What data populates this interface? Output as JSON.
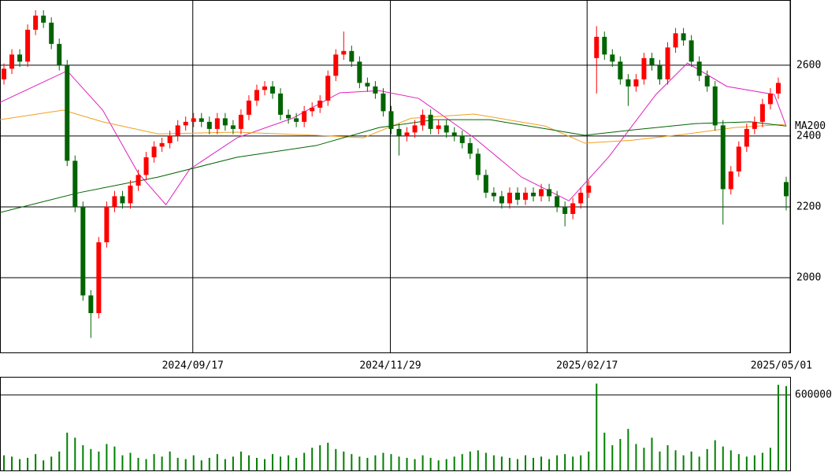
{
  "chart_data": [
    {
      "type": "candlestick",
      "open": [
        2560,
        2590,
        2630,
        2610,
        2700,
        2740,
        2720,
        2660,
        2600,
        2330,
        2200,
        1950,
        1900,
        2100,
        2200,
        2230,
        2210,
        2260,
        2290,
        2340,
        2370,
        2380,
        2400,
        2430,
        2440,
        2450,
        2440,
        2420,
        2450,
        2430,
        2420,
        2460,
        2500,
        2530,
        2540,
        2520,
        2460,
        2450,
        2440,
        2470,
        2480,
        2500,
        2570,
        2630,
        2640,
        2610,
        2550,
        2540,
        2520,
        2470,
        2420,
        2400,
        2410,
        2430,
        2460,
        2420,
        2430,
        2410,
        2400,
        2380,
        2350,
        2290,
        2240,
        2230,
        2210,
        2240,
        2220,
        2240,
        2230,
        2250,
        2230,
        2200,
        2180,
        2210,
        2240,
        2620,
        2680,
        2630,
        2610,
        2560,
        2540,
        2560,
        2620,
        2600,
        2560,
        2650,
        2690,
        2670,
        2610,
        2570,
        2540,
        2430,
        2250,
        2300,
        2370,
        2420,
        2440,
        2490,
        2520,
        2270
      ],
      "high": [
        2605,
        2645,
        2645,
        2715,
        2755,
        2755,
        2735,
        2675,
        2615,
        2345,
        2215,
        1965,
        2115,
        2215,
        2245,
        2245,
        2275,
        2305,
        2355,
        2385,
        2395,
        2415,
        2445,
        2455,
        2465,
        2465,
        2455,
        2465,
        2465,
        2445,
        2475,
        2515,
        2545,
        2555,
        2555,
        2535,
        2475,
        2465,
        2485,
        2495,
        2515,
        2585,
        2645,
        2695,
        2655,
        2625,
        2565,
        2555,
        2535,
        2485,
        2435,
        2425,
        2445,
        2475,
        2475,
        2445,
        2445,
        2425,
        2415,
        2395,
        2365,
        2305,
        2255,
        2245,
        2255,
        2255,
        2255,
        2255,
        2265,
        2265,
        2245,
        2215,
        2225,
        2255,
        2275,
        2710,
        2695,
        2645,
        2625,
        2575,
        2575,
        2635,
        2635,
        2615,
        2665,
        2705,
        2705,
        2685,
        2625,
        2585,
        2555,
        2445,
        2315,
        2385,
        2435,
        2455,
        2505,
        2535,
        2565,
        2285
      ],
      "low": [
        2545,
        2575,
        2595,
        2595,
        2685,
        2705,
        2645,
        2585,
        2315,
        2185,
        1935,
        1830,
        1885,
        2085,
        2185,
        2195,
        2195,
        2245,
        2275,
        2325,
        2355,
        2365,
        2385,
        2415,
        2425,
        2425,
        2405,
        2405,
        2415,
        2405,
        2405,
        2445,
        2485,
        2515,
        2505,
        2445,
        2435,
        2425,
        2425,
        2455,
        2465,
        2485,
        2555,
        2615,
        2595,
        2535,
        2525,
        2505,
        2455,
        2405,
        2345,
        2385,
        2395,
        2415,
        2405,
        2405,
        2395,
        2385,
        2365,
        2335,
        2275,
        2225,
        2215,
        2195,
        2195,
        2205,
        2205,
        2215,
        2215,
        2215,
        2185,
        2145,
        2165,
        2195,
        2225,
        2520,
        2615,
        2595,
        2545,
        2485,
        2525,
        2545,
        2585,
        2545,
        2545,
        2635,
        2655,
        2595,
        2555,
        2525,
        2415,
        2150,
        2235,
        2285,
        2355,
        2405,
        2425,
        2475,
        2505,
        2190
      ],
      "close": [
        2590,
        2630,
        2610,
        2700,
        2740,
        2720,
        2660,
        2600,
        2330,
        2200,
        1950,
        1900,
        2100,
        2200,
        2230,
        2210,
        2260,
        2290,
        2340,
        2370,
        2380,
        2400,
        2430,
        2440,
        2450,
        2440,
        2420,
        2450,
        2430,
        2420,
        2460,
        2500,
        2530,
        2540,
        2520,
        2460,
        2450,
        2440,
        2470,
        2480,
        2500,
        2570,
        2630,
        2640,
        2610,
        2550,
        2540,
        2520,
        2470,
        2420,
        2400,
        2410,
        2430,
        2460,
        2420,
        2430,
        2410,
        2400,
        2380,
        2350,
        2290,
        2240,
        2230,
        2210,
        2240,
        2220,
        2240,
        2230,
        2250,
        2230,
        2200,
        2180,
        2210,
        2240,
        2260,
        2680,
        2630,
        2610,
        2560,
        2540,
        2560,
        2620,
        2600,
        2560,
        2650,
        2690,
        2670,
        2610,
        2570,
        2540,
        2430,
        2250,
        2300,
        2370,
        2420,
        2440,
        2490,
        2520,
        2550,
        2230
      ],
      "up_color": "#ff0000",
      "down_color": "#006400",
      "series": [
        {
          "color": "#e020c0",
          "x": [
            0,
            8.5,
            13,
            17.5,
            21,
            24,
            30,
            37,
            43,
            48,
            53,
            60,
            66,
            72,
            77,
            83,
            87,
            92,
            98,
            99.5
          ],
          "values": [
            2495,
            2584,
            2473,
            2295,
            2206,
            2306,
            2395,
            2450,
            2522,
            2528,
            2506,
            2395,
            2284,
            2217,
            2340,
            2517,
            2606,
            2540,
            2517,
            2428
          ]
        },
        {
          "color": "#f0a020",
          "x": [
            0,
            8,
            13,
            20,
            30,
            40,
            46,
            52,
            60,
            69,
            74,
            80,
            87,
            93,
            99.5
          ],
          "values": [
            2446,
            2473,
            2440,
            2406,
            2411,
            2402,
            2395,
            2450,
            2462,
            2428,
            2380,
            2388,
            2406,
            2424,
            2433
          ]
        },
        {
          "name": "MA200",
          "color": "#006400",
          "x": [
            0,
            10,
            20,
            30,
            40,
            48,
            55,
            62,
            70,
            74,
            80,
            88,
            95,
            99.5
          ],
          "values": [
            2184,
            2240,
            2284,
            2340,
            2373,
            2424,
            2446,
            2446,
            2417,
            2402,
            2417,
            2435,
            2440,
            2428
          ]
        }
      ],
      "xlim": [
        0,
        100
      ],
      "xticks": [
        {
          "value": 24.4,
          "label": "2024/09/17"
        },
        {
          "value": 49.4,
          "label": "2024/11/29"
        },
        {
          "value": 74.3,
          "label": "2025/02/17"
        },
        {
          "value": 100,
          "label": "2025/05/01"
        }
      ],
      "ylim": [
        1789,
        2784
      ],
      "yticks": [
        2000,
        2200,
        2400,
        2600
      ],
      "grid": true
    },
    {
      "type": "bar",
      "color": "#008000",
      "values": [
        120000,
        110000,
        90000,
        100000,
        130000,
        80000,
        110000,
        150000,
        300000,
        260000,
        200000,
        170000,
        150000,
        210000,
        190000,
        120000,
        140000,
        100000,
        90000,
        130000,
        110000,
        150000,
        100000,
        90000,
        120000,
        80000,
        100000,
        130000,
        90000,
        110000,
        150000,
        120000,
        100000,
        90000,
        130000,
        110000,
        120000,
        100000,
        140000,
        180000,
        200000,
        220000,
        170000,
        150000,
        130000,
        110000,
        100000,
        120000,
        140000,
        130000,
        110000,
        100000,
        90000,
        120000,
        100000,
        80000,
        90000,
        110000,
        130000,
        150000,
        160000,
        140000,
        120000,
        110000,
        100000,
        90000,
        120000,
        100000,
        110000,
        90000,
        120000,
        130000,
        110000,
        120000,
        150000,
        690000,
        300000,
        200000,
        250000,
        330000,
        210000,
        180000,
        260000,
        150000,
        200000,
        160000,
        120000,
        150000,
        110000,
        170000,
        240000,
        190000,
        160000,
        130000,
        110000,
        120000,
        140000,
        180000,
        680000,
        670000
      ],
      "xlim": [
        0,
        100
      ],
      "ylim": [
        0,
        737500
      ],
      "yticks": [
        600000
      ],
      "grid": true
    }
  ]
}
